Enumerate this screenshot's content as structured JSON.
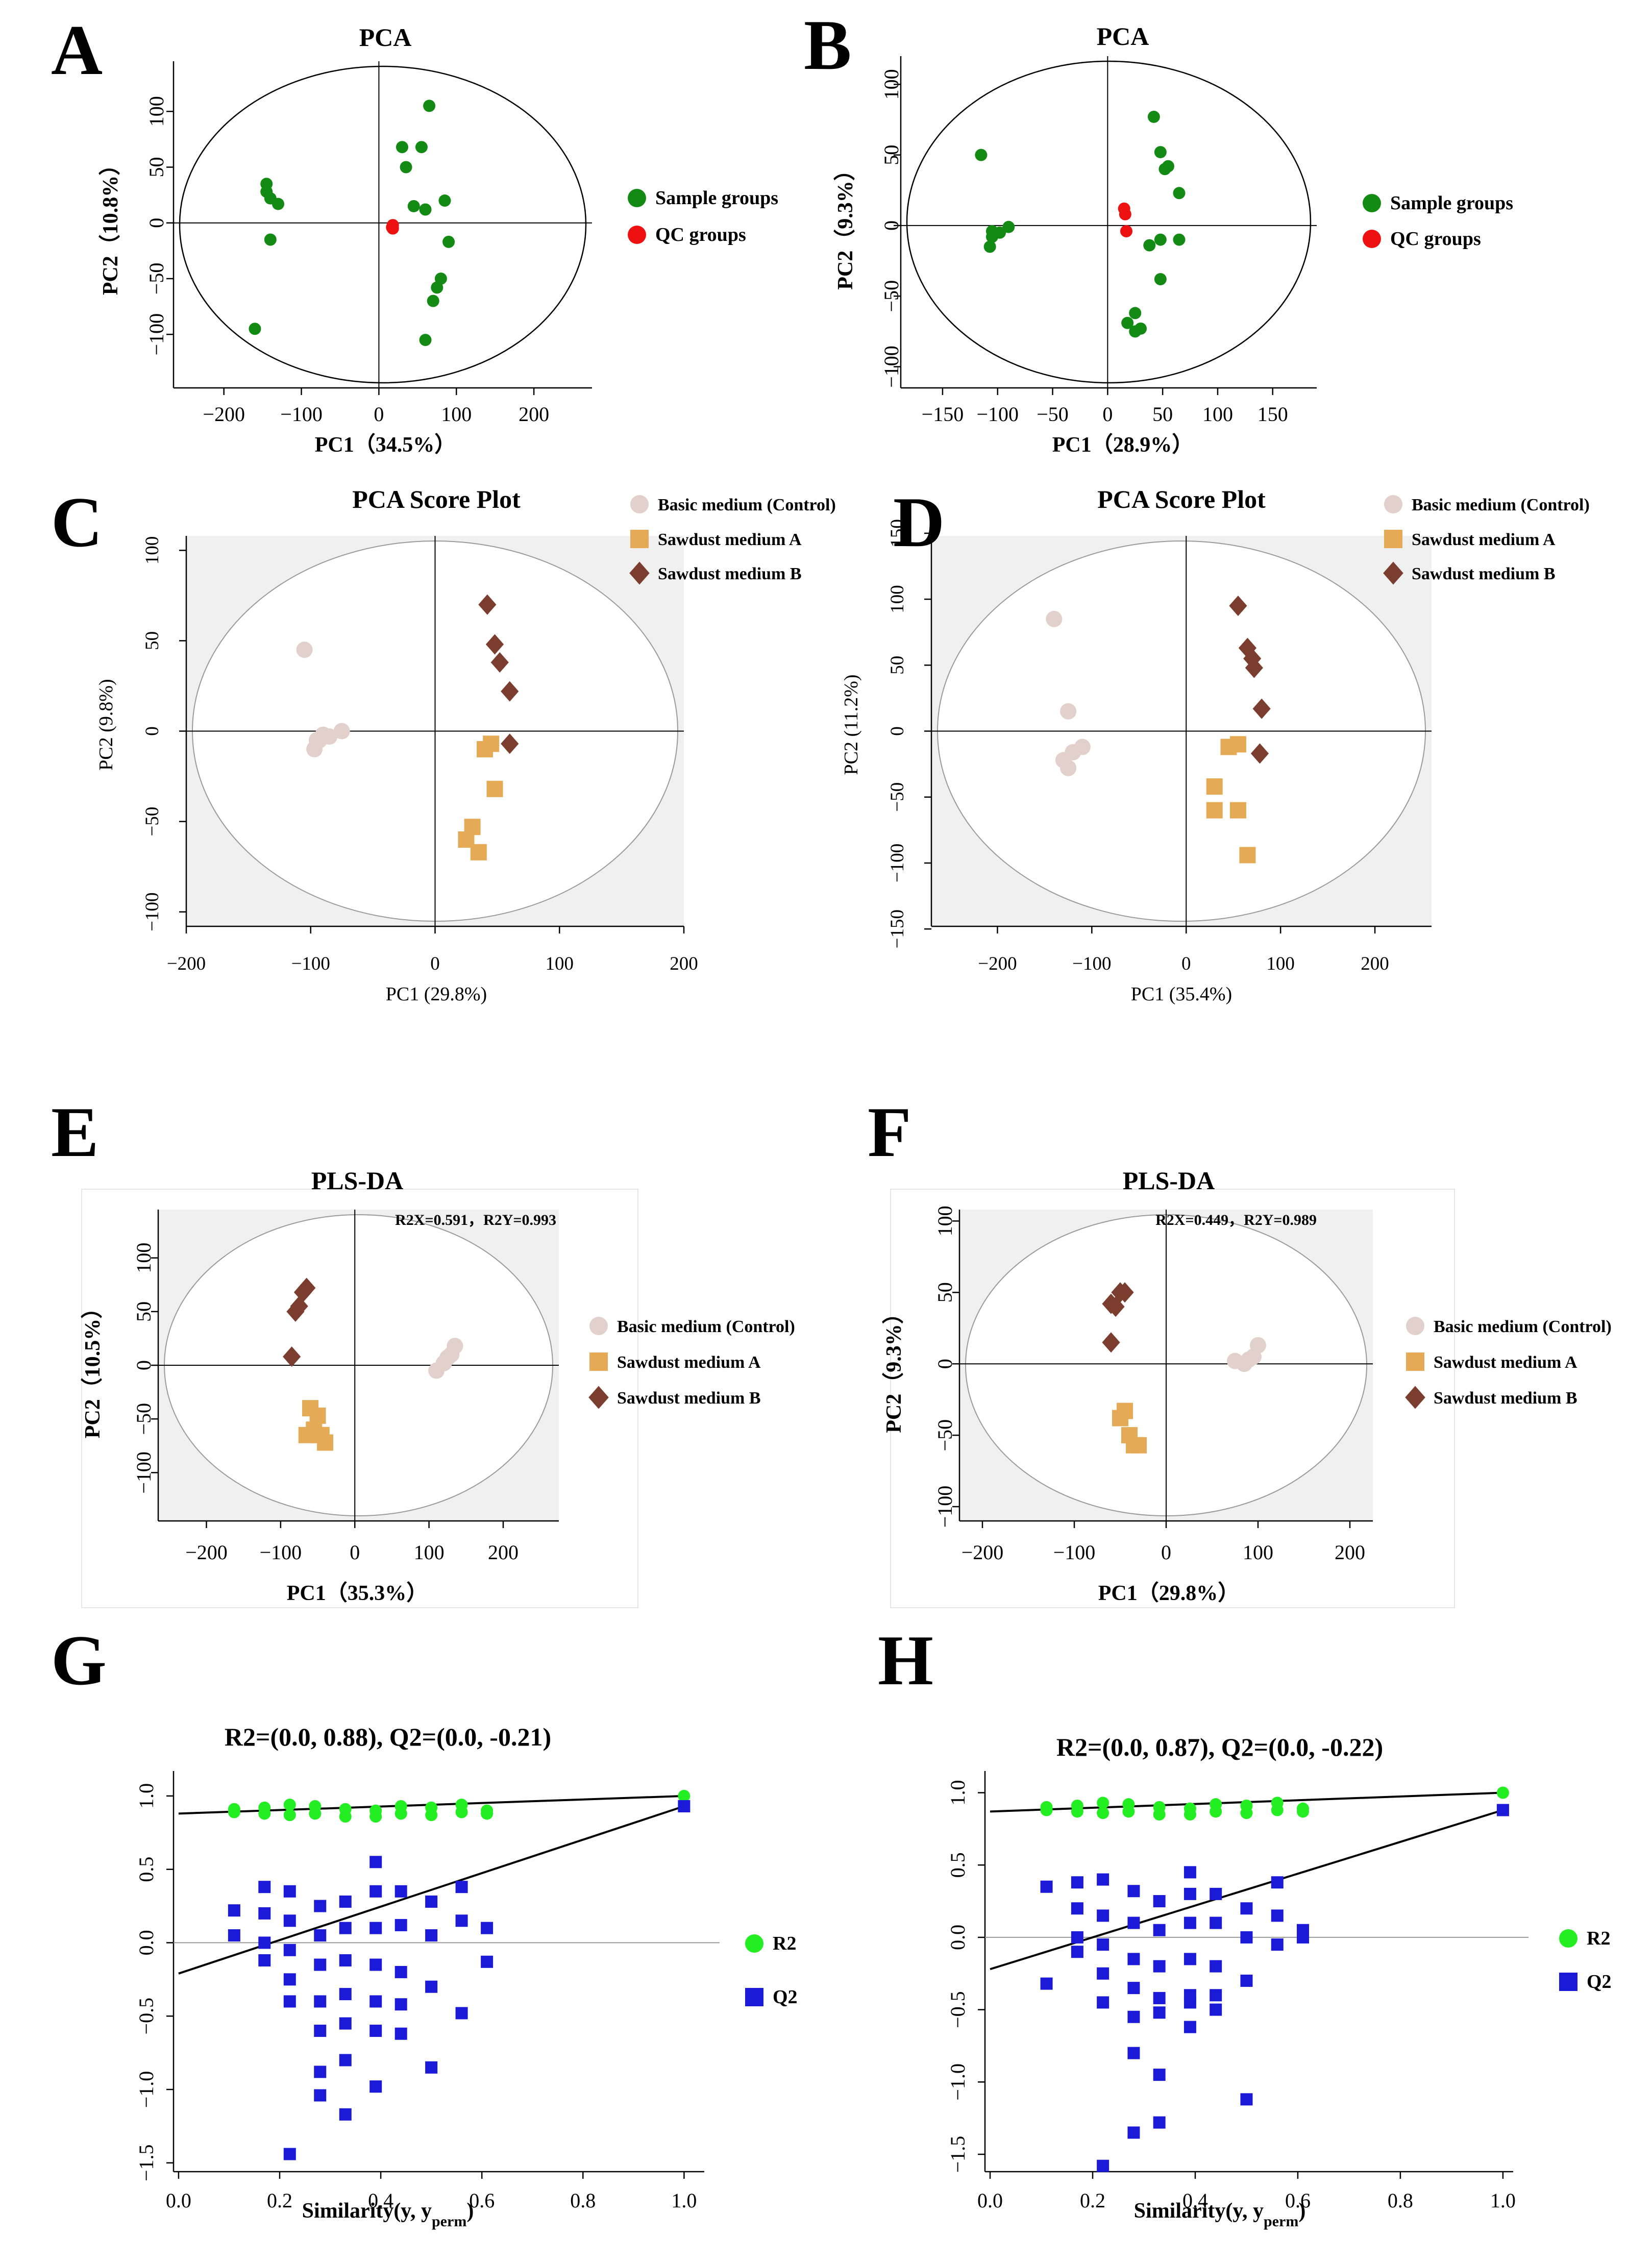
{
  "colors": {
    "green": "#138a13",
    "red": "#ee1111",
    "control": "#e2d0cc",
    "sawdustA": "#e5aa55",
    "sawdustB": "#7a3d2e",
    "r2": "#22ee22",
    "q2": "#1a1ad8",
    "shade": "#f0f0f0"
  },
  "chart_data": [
    {
      "panel": "A",
      "type": "scatter",
      "title": "PCA",
      "xlabel": "PC1（34.5%）",
      "ylabel": "PC2（10.8%）",
      "xticks": [
        "−200",
        "−100",
        "0",
        "100",
        "200"
      ],
      "yticks": [
        "100",
        "50",
        "0",
        "−50",
        "−100"
      ],
      "xlim": [
        -265,
        275
      ],
      "ylim": [
        -148,
        145
      ],
      "legend": [
        "Sample groups",
        "QC groups"
      ],
      "series": [
        {
          "name": "Sample groups",
          "marker": "circle",
          "color": "green",
          "x": [
            -145,
            -140,
            -130,
            -145,
            -140,
            -160,
            65,
            30,
            35,
            55,
            45,
            60,
            85,
            90,
            80,
            75,
            70,
            60
          ],
          "y": [
            35,
            22,
            17,
            28,
            -15,
            -95,
            105,
            68,
            50,
            68,
            15,
            12,
            20,
            -17,
            -50,
            -58,
            -70,
            -105
          ]
        },
        {
          "name": "QC groups",
          "marker": "circle",
          "color": "red",
          "x": [
            18,
            18,
            17
          ],
          "y": [
            -2,
            -5,
            -4
          ]
        }
      ]
    },
    {
      "panel": "B",
      "type": "scatter",
      "title": "PCA",
      "xlabel": "PC1（28.9%）",
      "ylabel": "PC2（9.3%）",
      "xticks": [
        "−150",
        "−100",
        "−50",
        "0",
        "50",
        "100",
        "150"
      ],
      "yticks": [
        "100",
        "50",
        "0",
        "−50",
        "−100"
      ],
      "xlim": [
        -188,
        190
      ],
      "ylim": [
        -115,
        120
      ],
      "legend": [
        "Sample groups",
        "QC groups"
      ],
      "series": [
        {
          "name": "Sample groups",
          "marker": "circle",
          "color": "green",
          "x": [
            -115,
            -105,
            -105,
            -98,
            -90,
            -107,
            42,
            48,
            55,
            52,
            65,
            38,
            48,
            65,
            48,
            25,
            30,
            18,
            25
          ],
          "y": [
            50,
            -8,
            -4,
            -5,
            -1,
            -15,
            77,
            52,
            42,
            40,
            23,
            -14,
            -10,
            -10,
            -38,
            -62,
            -73,
            -69,
            -75
          ]
        },
        {
          "name": "QC groups",
          "marker": "circle",
          "color": "red",
          "x": [
            15,
            16,
            17
          ],
          "y": [
            12,
            8,
            -4
          ]
        }
      ]
    },
    {
      "panel": "C",
      "type": "scatter",
      "title": "PCA Score Plot",
      "xlabel": "PC1 (29.8%)",
      "ylabel": "PC2 (9.8%)",
      "xticks": [
        "−200",
        "−100",
        "0",
        "100",
        "200"
      ],
      "yticks": [
        "100",
        "50",
        "0",
        "−50",
        "−100"
      ],
      "xlim": [
        -200,
        200
      ],
      "ylim": [
        -108,
        108
      ],
      "legend": [
        "Basic medium (Control)",
        "Sawdust medium A",
        "Sawdust medium B"
      ],
      "series": [
        {
          "name": "Basic medium (Control)",
          "marker": "circle",
          "color": "control",
          "x": [
            -105,
            -95,
            -90,
            -85,
            -75,
            -97,
            -93
          ],
          "y": [
            45,
            -5,
            -2,
            -3,
            0,
            -10,
            -5
          ]
        },
        {
          "name": "Sawdust medium A",
          "marker": "square",
          "color": "sawdustA",
          "x": [
            40,
            45,
            48,
            30,
            25,
            35
          ],
          "y": [
            -10,
            -7,
            -32,
            -53,
            -60,
            -67
          ]
        },
        {
          "name": "Sawdust medium B",
          "marker": "diamond",
          "color": "sawdustB",
          "x": [
            42,
            48,
            52,
            60,
            60
          ],
          "y": [
            70,
            48,
            38,
            22,
            -7
          ]
        }
      ]
    },
    {
      "panel": "D",
      "type": "scatter",
      "title": "PCA Score Plot",
      "xlabel": "PC1 (35.4%)",
      "ylabel": "PC2 (11.2%)",
      "xticks": [
        "−200",
        "−100",
        "0",
        "100",
        "200"
      ],
      "yticks": [
        "150",
        "100",
        "50",
        "0",
        "−50",
        "−100",
        "−150"
      ],
      "xlim": [
        -270,
        260
      ],
      "ylim": [
        -148,
        148
      ],
      "legend": [
        "Basic medium (Control)",
        "Sawdust medium A",
        "Sawdust medium B"
      ],
      "series": [
        {
          "name": "Basic medium (Control)",
          "marker": "circle",
          "color": "control",
          "x": [
            -140,
            -125,
            -110,
            -120,
            -130,
            -125
          ],
          "y": [
            85,
            15,
            -12,
            -16,
            -22,
            -28
          ]
        },
        {
          "name": "Sawdust medium A",
          "marker": "square",
          "color": "sawdustA",
          "x": [
            45,
            55,
            30,
            30,
            55,
            65
          ],
          "y": [
            -12,
            -10,
            -42,
            -60,
            -60,
            -94
          ]
        },
        {
          "name": "Sawdust medium B",
          "marker": "diamond",
          "color": "sawdustB",
          "x": [
            55,
            65,
            70,
            72,
            80,
            78
          ],
          "y": [
            95,
            63,
            55,
            48,
            17,
            -17
          ]
        }
      ]
    },
    {
      "panel": "E",
      "type": "scatter",
      "title": "PLS-DA",
      "annotation": "R2X=0.591，R2Y=0.993",
      "xlabel": "PC1（35.3%）",
      "ylabel": "PC2（10.5%）",
      "xticks": [
        "−200",
        "−100",
        "0",
        "100",
        "200"
      ],
      "yticks": [
        "100",
        "50",
        "0",
        "−50",
        "−100"
      ],
      "xlim": [
        -265,
        275
      ],
      "ylim": [
        -145,
        145
      ],
      "legend": [
        "Basic medium (Control)",
        "Sawdust medium A",
        "Sawdust medium B"
      ],
      "series": [
        {
          "name": "Basic medium (Control)",
          "marker": "circle",
          "color": "control",
          "x": [
            110,
            120,
            125,
            130,
            135
          ],
          "y": [
            -5,
            2,
            7,
            10,
            18
          ]
        },
        {
          "name": "Sawdust medium A",
          "marker": "square",
          "color": "sawdustA",
          "x": [
            -60,
            -50,
            -65,
            -55,
            -45,
            -40
          ],
          "y": [
            -40,
            -47,
            -65,
            -60,
            -65,
            -72
          ]
        },
        {
          "name": "Sawdust medium B",
          "marker": "diamond",
          "color": "sawdustB",
          "x": [
            -80,
            -75,
            -70,
            -65,
            -85
          ],
          "y": [
            50,
            55,
            68,
            72,
            8
          ]
        }
      ]
    },
    {
      "panel": "F",
      "type": "scatter",
      "title": "PLS-DA",
      "annotation": "R2X=0.449，R2Y=0.989",
      "xlabel": "PC1（29.8%）",
      "ylabel": "PC2（9.3%）",
      "xticks": [
        "−200",
        "−100",
        "0",
        "100",
        "200"
      ],
      "yticks": [
        "100",
        "50",
        "0",
        "−50",
        "−100"
      ],
      "xlim": [
        -225,
        225
      ],
      "ylim": [
        -110,
        108
      ],
      "legend": [
        "Basic medium (Control)",
        "Sawdust medium A",
        "Sawdust medium B"
      ],
      "series": [
        {
          "name": "Basic medium (Control)",
          "marker": "circle",
          "color": "control",
          "x": [
            75,
            85,
            95,
            100,
            90
          ],
          "y": [
            2,
            0,
            5,
            13,
            3
          ]
        },
        {
          "name": "Sawdust medium A",
          "marker": "square",
          "color": "sawdustA",
          "x": [
            -45,
            -50,
            -40,
            -35,
            -30
          ],
          "y": [
            -33,
            -38,
            -50,
            -57,
            -57
          ]
        },
        {
          "name": "Sawdust medium B",
          "marker": "diamond",
          "color": "sawdustB",
          "x": [
            -60,
            -55,
            -50,
            -45,
            -60
          ],
          "y": [
            42,
            40,
            50,
            50,
            15
          ]
        }
      ]
    },
    {
      "panel": "G",
      "type": "scatter",
      "title": "R2=(0.0, 0.88), Q2=(0.0, -0.21)",
      "xlabel": "Similarity(y, y",
      "xlabel_sub": "perm",
      "xlabel_end": ")",
      "xticks": [
        "0.0",
        "0.2",
        "0.4",
        "0.6",
        "0.8",
        "1.0"
      ],
      "yticks": [
        "1.0",
        "0.5",
        "0.0",
        "−0.5",
        "−1.0",
        "−1.5"
      ],
      "xlim": [
        -0.01,
        1.04
      ],
      "ylim": [
        -1.56,
        1.17
      ],
      "legend": [
        "R2",
        "Q2"
      ],
      "lines": [
        {
          "name": "R2",
          "x": [
            0,
            1
          ],
          "y": [
            0.88,
            1.0
          ]
        },
        {
          "name": "Q2",
          "x": [
            0,
            1
          ],
          "y": [
            -0.21,
            0.93
          ]
        }
      ],
      "series": [
        {
          "name": "R2",
          "marker": "circle",
          "color": "r2",
          "x": [
            0.11,
            0.17,
            0.22,
            0.27,
            0.33,
            0.39,
            0.44,
            0.5,
            0.56,
            0.61,
            0.11,
            0.17,
            0.22,
            0.27,
            0.33,
            0.39,
            0.44,
            0.5,
            0.56,
            0.61,
            1.0
          ],
          "y": [
            0.91,
            0.92,
            0.94,
            0.93,
            0.91,
            0.9,
            0.93,
            0.92,
            0.94,
            0.9,
            0.89,
            0.88,
            0.87,
            0.88,
            0.86,
            0.86,
            0.88,
            0.87,
            0.89,
            0.88,
            1.0
          ]
        },
        {
          "name": "Q2",
          "marker": "square",
          "color": "q2",
          "x": [
            0.11,
            0.11,
            0.17,
            0.17,
            0.17,
            0.17,
            0.22,
            0.22,
            0.22,
            0.22,
            0.22,
            0.22,
            0.28,
            0.28,
            0.28,
            0.28,
            0.28,
            0.28,
            0.28,
            0.33,
            0.33,
            0.33,
            0.33,
            0.33,
            0.33,
            0.33,
            0.39,
            0.39,
            0.39,
            0.39,
            0.39,
            0.39,
            0.39,
            0.44,
            0.44,
            0.44,
            0.44,
            0.44,
            0.5,
            0.5,
            0.5,
            0.5,
            0.56,
            0.56,
            0.56,
            0.61,
            0.61,
            1.0
          ],
          "y": [
            0.22,
            0.05,
            0.38,
            0.2,
            0.0,
            -0.12,
            0.35,
            0.15,
            -0.05,
            -0.25,
            -0.4,
            -1.44,
            0.25,
            0.05,
            -0.15,
            -0.4,
            -0.6,
            -0.88,
            -1.04,
            0.28,
            0.1,
            -0.12,
            -0.35,
            -0.55,
            -0.8,
            -1.17,
            0.55,
            0.35,
            0.1,
            -0.15,
            -0.4,
            -0.6,
            -0.98,
            0.35,
            0.12,
            -0.2,
            -0.42,
            -0.62,
            0.28,
            0.05,
            -0.3,
            -0.85,
            0.38,
            0.15,
            -0.48,
            0.1,
            -0.13,
            0.93
          ]
        }
      ]
    },
    {
      "panel": "H",
      "type": "scatter",
      "title": "R2=(0.0, 0.87), Q2=(0.0, -0.22)",
      "xlabel": "Similarity(y, y",
      "xlabel_sub": "perm",
      "xlabel_end": ")",
      "xticks": [
        "0.0",
        "0.2",
        "0.4",
        "0.6",
        "0.8",
        "1.0"
      ],
      "yticks": [
        "1.0",
        "0.5",
        "0.0",
        "−0.5",
        "−1.0",
        "−1.5"
      ],
      "xlim": [
        -0.01,
        1.02
      ],
      "ylim": [
        -1.62,
        1.15
      ],
      "legend": [
        "R2",
        "Q2"
      ],
      "lines": [
        {
          "name": "R2",
          "x": [
            0,
            1
          ],
          "y": [
            0.87,
            1.0
          ]
        },
        {
          "name": "Q2",
          "x": [
            0,
            1
          ],
          "y": [
            -0.22,
            0.88
          ]
        }
      ],
      "series": [
        {
          "name": "R2",
          "marker": "circle",
          "color": "r2",
          "x": [
            0.11,
            0.17,
            0.22,
            0.27,
            0.33,
            0.39,
            0.44,
            0.5,
            0.56,
            0.61,
            0.11,
            0.17,
            0.22,
            0.27,
            0.33,
            0.39,
            0.44,
            0.5,
            0.56,
            0.61,
            1.0
          ],
          "y": [
            0.9,
            0.91,
            0.93,
            0.92,
            0.9,
            0.89,
            0.92,
            0.91,
            0.93,
            0.89,
            0.88,
            0.87,
            0.86,
            0.87,
            0.85,
            0.85,
            0.87,
            0.86,
            0.88,
            0.87,
            1.0
          ]
        },
        {
          "name": "Q2",
          "marker": "square",
          "color": "q2",
          "x": [
            0.11,
            0.11,
            0.17,
            0.17,
            0.17,
            0.17,
            0.22,
            0.22,
            0.22,
            0.22,
            0.22,
            0.22,
            0.28,
            0.28,
            0.28,
            0.28,
            0.28,
            0.28,
            0.28,
            0.33,
            0.33,
            0.33,
            0.33,
            0.33,
            0.33,
            0.33,
            0.39,
            0.39,
            0.39,
            0.39,
            0.39,
            0.39,
            0.39,
            0.44,
            0.44,
            0.44,
            0.44,
            0.44,
            0.5,
            0.5,
            0.5,
            0.5,
            0.56,
            0.56,
            0.56,
            0.61,
            0.61,
            1.0
          ],
          "y": [
            0.35,
            -0.32,
            0.38,
            0.2,
            0.0,
            -0.1,
            0.4,
            0.15,
            -0.05,
            -0.25,
            -0.45,
            -1.58,
            0.32,
            0.1,
            -0.15,
            -0.35,
            -0.55,
            -0.8,
            -1.35,
            0.25,
            0.05,
            -0.2,
            -0.42,
            -0.52,
            -1.28,
            -0.95,
            0.45,
            0.3,
            0.1,
            -0.15,
            -0.4,
            -0.45,
            -0.62,
            0.3,
            0.1,
            -0.2,
            -0.4,
            -0.5,
            0.2,
            0.0,
            -0.3,
            -1.12,
            0.38,
            0.15,
            -0.05,
            0.05,
            0.0,
            0.88
          ]
        }
      ]
    }
  ]
}
